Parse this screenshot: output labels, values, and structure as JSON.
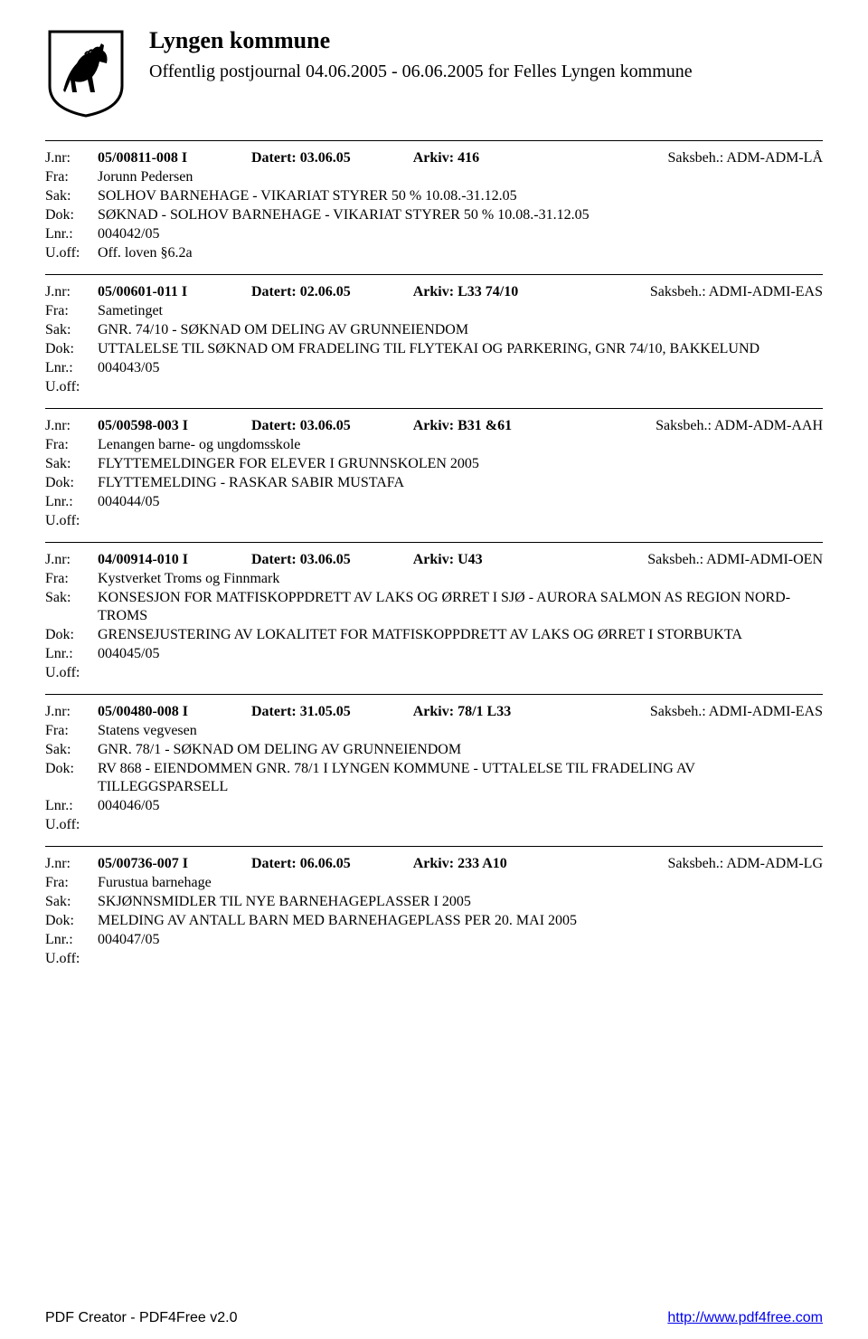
{
  "header": {
    "municipality": "Lyngen kommune",
    "journal_title": "Offentlig postjournal 04.06.2005 - 06.06.2005 for Felles Lyngen kommune"
  },
  "labels": {
    "jnr": "J.nr:",
    "datert": "Datert:",
    "arkiv": "Arkiv:",
    "saksbeh_prefix": "Saksbeh.:",
    "fra": "Fra:",
    "sak": "Sak:",
    "dok": "Dok:",
    "lnr": "Lnr.:",
    "uoff": "U.off:"
  },
  "entries": [
    {
      "jnr": "05/00811-008 I",
      "datert": "03.06.05",
      "arkiv": "416",
      "saksbeh": "ADM-ADM-LÅ",
      "fra": "Jorunn Pedersen",
      "sak": "SOLHOV BARNEHAGE - VIKARIAT STYRER 50 % 10.08.-31.12.05",
      "dok": "SØKNAD - SOLHOV BARNEHAGE - VIKARIAT STYRER 50 % 10.08.-31.12.05",
      "lnr": "004042/05",
      "uoff": "Off. loven §6.2a"
    },
    {
      "jnr": "05/00601-011 I",
      "datert": "02.06.05",
      "arkiv": "L33  74/10",
      "saksbeh": "ADMI-ADMI-EAS",
      "fra": "Sametinget",
      "sak": "GNR. 74/10 - SØKNAD OM DELING AV GRUNNEIENDOM",
      "dok": "UTTALELSE TIL SØKNAD OM FRADELING TIL FLYTEKAI OG PARKERING, GNR 74/10, BAKKELUND",
      "lnr": "004043/05",
      "uoff": ""
    },
    {
      "jnr": "05/00598-003 I",
      "datert": "03.06.05",
      "arkiv": "B31 &61",
      "saksbeh": "ADM-ADM-AAH",
      "fra": "Lenangen barne- og ungdomsskole",
      "sak": "FLYTTEMELDINGER FOR ELEVER I GRUNNSKOLEN  2005",
      "dok": "FLYTTEMELDING - RASKAR SABIR MUSTAFA",
      "lnr": "004044/05",
      "uoff": ""
    },
    {
      "jnr": "04/00914-010 I",
      "datert": "03.06.05",
      "arkiv": "U43",
      "saksbeh": "ADMI-ADMI-OEN",
      "fra": "Kystverket Troms og Finnmark",
      "sak": "KONSESJON FOR MATFISKOPPDRETT AV LAKS OG ØRRET I SJØ - AURORA SALMON AS REGION NORD-TROMS",
      "dok": "GRENSEJUSTERING AV LOKALITET FOR MATFISKOPPDRETT AV LAKS OG ØRRET I STORBUKTA",
      "lnr": "004045/05",
      "uoff": ""
    },
    {
      "jnr": "05/00480-008 I",
      "datert": "31.05.05",
      "arkiv": "78/1 L33",
      "saksbeh": "ADMI-ADMI-EAS",
      "fra": "Statens vegvesen",
      "sak": "GNR. 78/1 - SØKNAD OM DELING AV GRUNNEIENDOM",
      "dok": "RV 868 - EIENDOMMEN GNR. 78/1 I LYNGEN KOMMUNE - UTTALELSE TIL FRADELING AV TILLEGGSPARSELL",
      "lnr": "004046/05",
      "uoff": ""
    },
    {
      "jnr": "05/00736-007 I",
      "datert": "06.06.05",
      "arkiv": "233 A10",
      "saksbeh": "ADM-ADM-LG",
      "fra": "Furustua barnehage",
      "sak": "SKJØNNSMIDLER TIL NYE BARNEHAGEPLASSER I 2005",
      "dok": "MELDING AV ANTALL BARN MED BARNEHAGEPLASS PER 20. MAI 2005",
      "lnr": "004047/05",
      "uoff": ""
    }
  ],
  "footer": {
    "left": "PDF Creator - PDF4Free v2.0",
    "right": "http://www.pdf4free.com"
  },
  "colors": {
    "text": "#000000",
    "background": "#ffffff",
    "link": "#0000ee"
  }
}
